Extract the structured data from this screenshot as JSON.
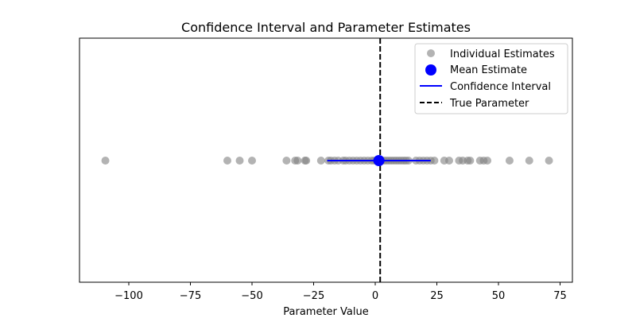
{
  "chart_data": {
    "type": "scatter",
    "title": "Confidence Interval and Parameter Estimates",
    "xlabel": "Parameter Value",
    "ylabel": "",
    "xlim": [
      -120,
      80
    ],
    "xticks": [
      -100,
      -75,
      -50,
      -25,
      0,
      25,
      50,
      75
    ],
    "xtick_labels": [
      "−100",
      "−75",
      "−50",
      "−25",
      "0",
      "25",
      "50",
      "75"
    ],
    "grid": false,
    "legend_position": "top-right",
    "series": [
      {
        "name": "Individual Estimates",
        "kind": "points",
        "color": "#808080",
        "opacity": 0.6,
        "x": [
          -109.5,
          -60.0,
          -55.0,
          -50.0,
          -36.0,
          -32.5,
          -31.5,
          -28.5,
          -28.0,
          -22.0,
          -19.0,
          -18.0,
          -16.5,
          -15.0,
          -13.0,
          -12.0,
          -10.5,
          -9.0,
          -7.5,
          -6.0,
          -4.5,
          -3.0,
          -1.5,
          -0.5,
          0.5,
          1.5,
          2.5,
          3.5,
          4.5,
          5.5,
          6.5,
          7.5,
          8.5,
          9.5,
          10.5,
          11.5,
          12.5,
          13.5,
          16.5,
          18.0,
          19.5,
          21.0,
          22.5,
          24.0,
          28.0,
          30.0,
          34.0,
          35.5,
          37.5,
          38.5,
          42.5,
          44.0,
          45.5,
          54.5,
          62.5,
          70.5
        ]
      },
      {
        "name": "Mean Estimate",
        "kind": "point",
        "color": "#0000ff",
        "x": [
          1.5
        ]
      },
      {
        "name": "Confidence Interval",
        "kind": "hline",
        "color": "#0000ff",
        "x": [
          -19.5,
          22.5
        ]
      },
      {
        "name": "True Parameter",
        "kind": "vline",
        "color": "#000000",
        "dash": true,
        "x": [
          2.0
        ]
      }
    ]
  }
}
